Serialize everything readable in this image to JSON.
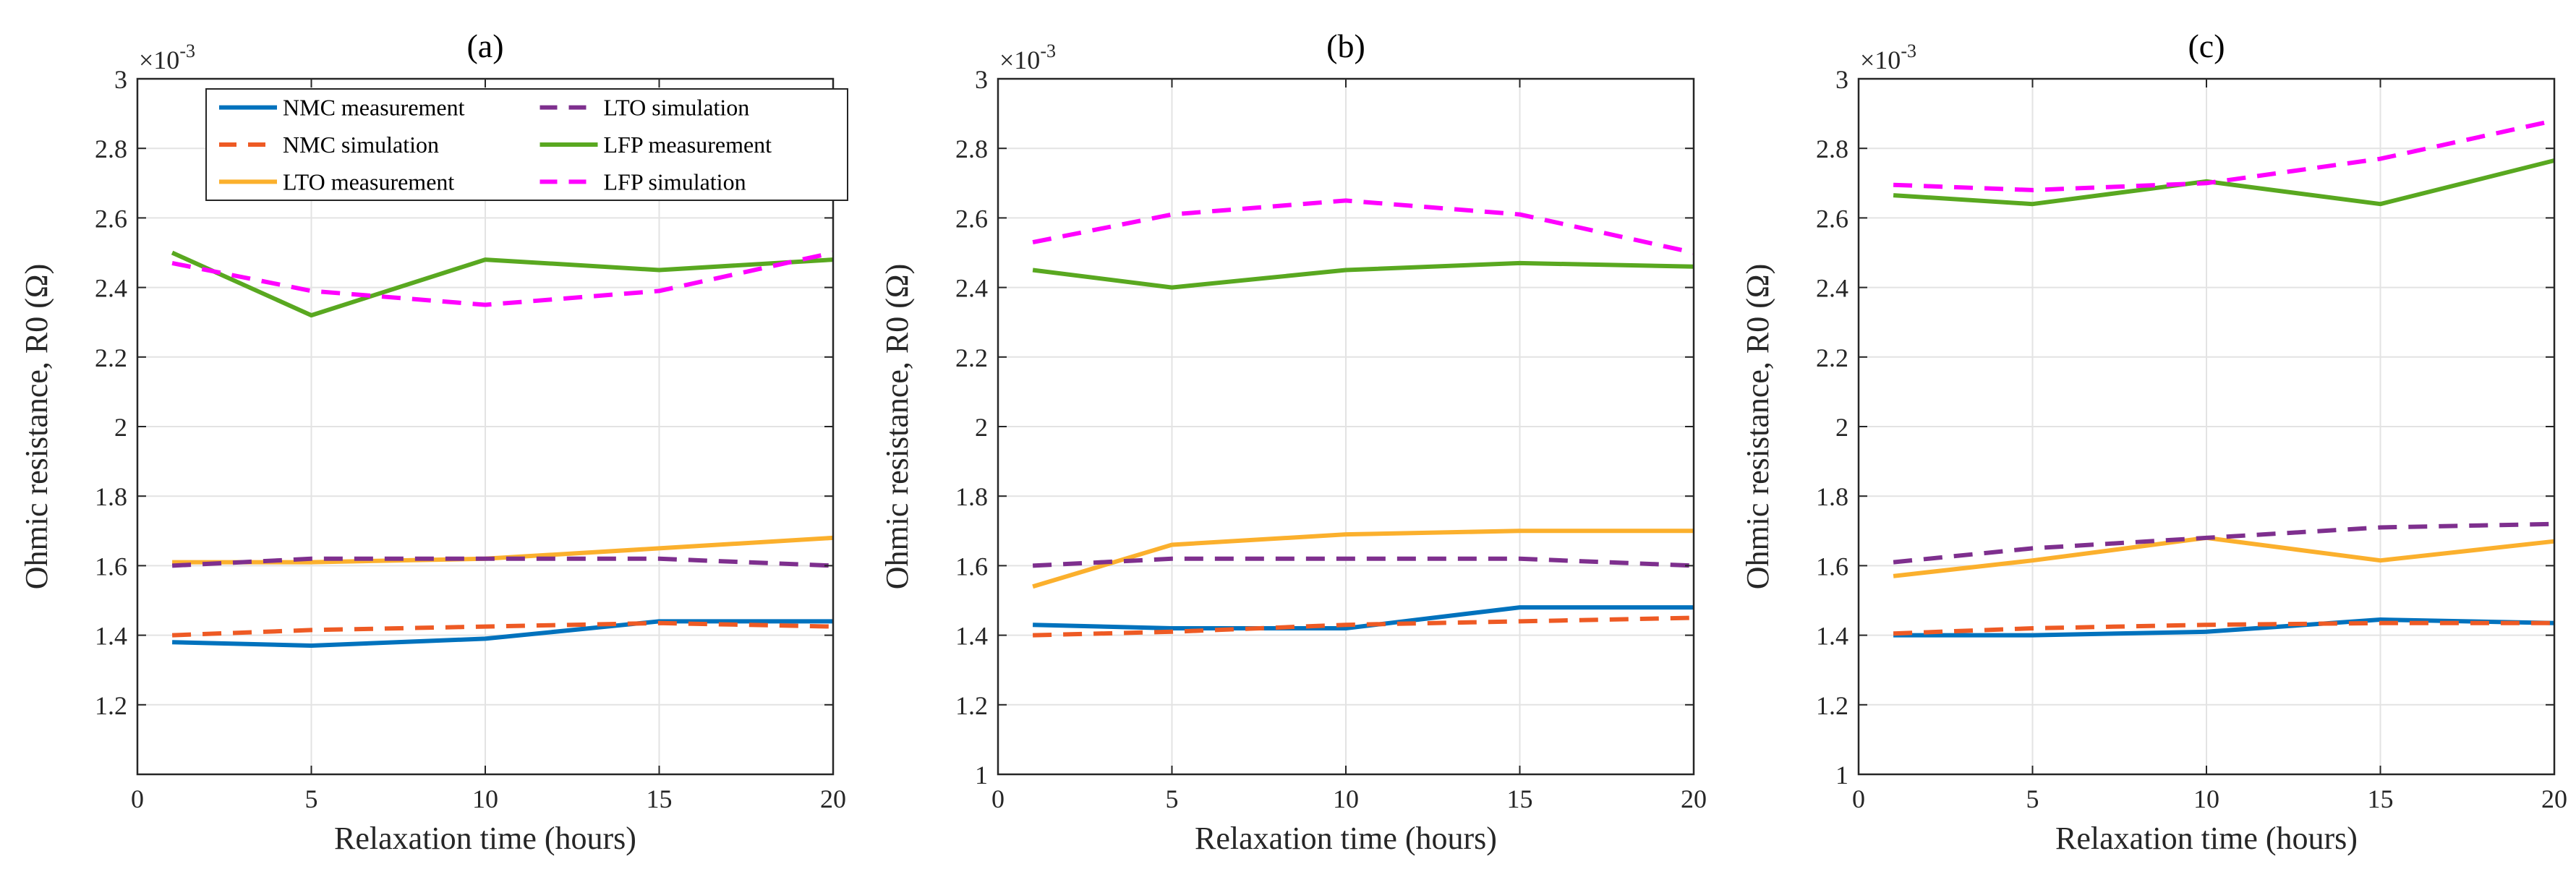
{
  "chart_data": [
    {
      "type": "line",
      "title": "(a)",
      "xlabel": "Relaxation time (hours)",
      "ylabel": "Ohmic resistance, R0 (Ω)",
      "y_exponent_label": "×10",
      "y_exponent_power": "-3",
      "xlim": [
        0,
        20
      ],
      "ylim": [
        1.0,
        3.0
      ],
      "xticks": [
        0,
        5,
        10,
        15,
        20
      ],
      "yticks": [
        1.2,
        1.4,
        1.6,
        1.8,
        2.0,
        2.2,
        2.4,
        2.6,
        2.8,
        3.0
      ],
      "ytick_labels": [
        "1.2",
        "1.4",
        "1.6",
        "1.8",
        "2",
        "2.2",
        "2.4",
        "2.6",
        "2.8",
        "3"
      ],
      "grid": true,
      "legend": true,
      "legend_position": "top-center",
      "x": [
        1,
        5,
        10,
        15,
        20
      ],
      "series": [
        {
          "name": "NMC measurement",
          "color": "#0072BD",
          "style": "solid",
          "values": [
            1.38,
            1.37,
            1.39,
            1.44,
            1.44
          ]
        },
        {
          "name": "NMC simulation",
          "color": "#EE5A24",
          "style": "dashed",
          "values": [
            1.4,
            1.415,
            1.425,
            1.435,
            1.425
          ]
        },
        {
          "name": "LTO measurement",
          "color": "#FBB02D",
          "style": "solid",
          "values": [
            1.61,
            1.61,
            1.62,
            1.65,
            1.68
          ]
        },
        {
          "name": "LTO simulation",
          "color": "#7E2F8E",
          "style": "dashed",
          "values": [
            1.6,
            1.62,
            1.62,
            1.62,
            1.6
          ]
        },
        {
          "name": "LFP measurement",
          "color": "#59A820",
          "style": "solid",
          "values": [
            2.5,
            2.32,
            2.48,
            2.45,
            2.48
          ]
        },
        {
          "name": "LFP simulation",
          "color": "#FF00FF",
          "style": "dashed",
          "values": [
            2.47,
            2.39,
            2.35,
            2.39,
            2.5
          ]
        }
      ]
    },
    {
      "type": "line",
      "title": "(b)",
      "xlabel": "Relaxation time (hours)",
      "ylabel": "Ohmic resistance, R0 (Ω)",
      "y_exponent_label": "×10",
      "y_exponent_power": "-3",
      "xlim": [
        0,
        20
      ],
      "ylim": [
        1.0,
        3.0
      ],
      "xticks": [
        0,
        5,
        10,
        15,
        20
      ],
      "yticks": [
        1.0,
        1.2,
        1.4,
        1.6,
        1.8,
        2.0,
        2.2,
        2.4,
        2.6,
        2.8,
        3.0
      ],
      "ytick_labels": [
        "1",
        "1.2",
        "1.4",
        "1.6",
        "1.8",
        "2",
        "2.2",
        "2.4",
        "2.6",
        "2.8",
        "3"
      ],
      "grid": true,
      "legend": false,
      "x": [
        1,
        5,
        10,
        15,
        20
      ],
      "series": [
        {
          "name": "NMC measurement",
          "color": "#0072BD",
          "style": "solid",
          "values": [
            1.43,
            1.42,
            1.42,
            1.48,
            1.48
          ]
        },
        {
          "name": "NMC simulation",
          "color": "#EE5A24",
          "style": "dashed",
          "values": [
            1.4,
            1.41,
            1.43,
            1.44,
            1.45
          ]
        },
        {
          "name": "LTO measurement",
          "color": "#FBB02D",
          "style": "solid",
          "values": [
            1.54,
            1.66,
            1.69,
            1.7,
            1.7
          ]
        },
        {
          "name": "LTO simulation",
          "color": "#7E2F8E",
          "style": "dashed",
          "values": [
            1.6,
            1.62,
            1.62,
            1.62,
            1.6
          ]
        },
        {
          "name": "LFP measurement",
          "color": "#59A820",
          "style": "solid",
          "values": [
            2.45,
            2.4,
            2.45,
            2.47,
            2.46
          ]
        },
        {
          "name": "LFP simulation",
          "color": "#FF00FF",
          "style": "dashed",
          "values": [
            2.53,
            2.61,
            2.65,
            2.61,
            2.5
          ]
        }
      ]
    },
    {
      "type": "line",
      "title": "(c)",
      "xlabel": "Relaxation time (hours)",
      "ylabel": "Ohmic resistance, R0 (Ω)",
      "y_exponent_label": "×10",
      "y_exponent_power": "-3",
      "xlim": [
        0,
        20
      ],
      "ylim": [
        1.0,
        3.0
      ],
      "xticks": [
        0,
        5,
        10,
        15,
        20
      ],
      "yticks": [
        1.0,
        1.2,
        1.4,
        1.6,
        1.8,
        2.0,
        2.2,
        2.4,
        2.6,
        2.8,
        3.0
      ],
      "ytick_labels": [
        "1",
        "1.2",
        "1.4",
        "1.6",
        "1.8",
        "2",
        "2.2",
        "2.4",
        "2.6",
        "2.8",
        "3"
      ],
      "grid": true,
      "legend": false,
      "x": [
        1,
        5,
        10,
        15,
        20
      ],
      "series": [
        {
          "name": "NMC measurement",
          "color": "#0072BD",
          "style": "solid",
          "values": [
            1.4,
            1.4,
            1.41,
            1.445,
            1.435
          ]
        },
        {
          "name": "NMC simulation",
          "color": "#EE5A24",
          "style": "dashed",
          "values": [
            1.405,
            1.42,
            1.43,
            1.435,
            1.435
          ]
        },
        {
          "name": "LTO measurement",
          "color": "#FBB02D",
          "style": "solid",
          "values": [
            1.57,
            1.615,
            1.68,
            1.615,
            1.67
          ]
        },
        {
          "name": "LTO simulation",
          "color": "#7E2F8E",
          "style": "dashed",
          "values": [
            1.61,
            1.65,
            1.68,
            1.71,
            1.72
          ]
        },
        {
          "name": "LFP measurement",
          "color": "#59A820",
          "style": "solid",
          "values": [
            2.665,
            2.64,
            2.705,
            2.64,
            2.765
          ]
        },
        {
          "name": "LFP simulation",
          "color": "#FF00FF",
          "style": "dashed",
          "values": [
            2.695,
            2.68,
            2.7,
            2.77,
            2.88
          ]
        }
      ]
    }
  ]
}
